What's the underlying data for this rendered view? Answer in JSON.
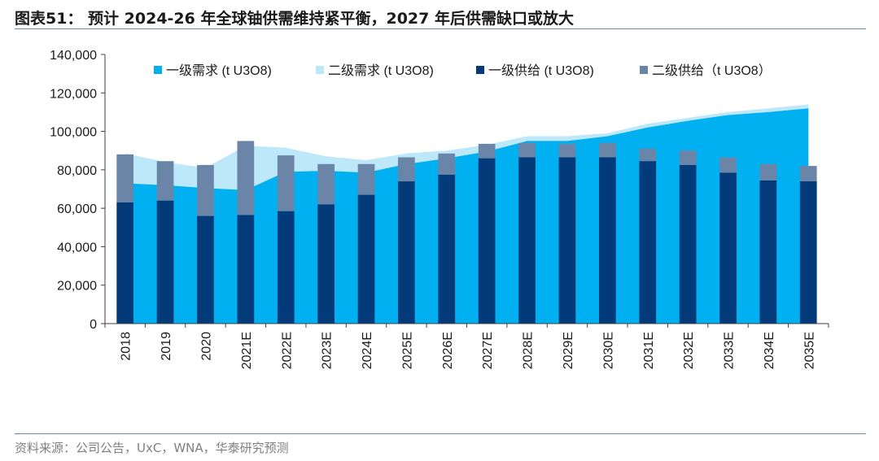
{
  "header": {
    "title": "图表51： 预计 2024-26 年全球铀供需维持紧平衡，2027 年后供需缺口或放大"
  },
  "footer": {
    "source": "资料来源：公司公告，UxC，WNA，华泰研究预测"
  },
  "colors": {
    "primary_demand": "#00b0f0",
    "secondary_demand": "#bde8f9",
    "primary_supply": "#023a7a",
    "secondary_supply": "#6b85a8",
    "axis": "#404040"
  },
  "chart_data": {
    "type": "bar",
    "title": "",
    "xlabel": "",
    "ylabel": "",
    "ylim": [
      0,
      140000
    ],
    "yticks": [
      0,
      20000,
      40000,
      60000,
      80000,
      100000,
      120000,
      140000
    ],
    "ytick_labels": [
      "0",
      "20,000",
      "40,000",
      "60,000",
      "80,000",
      "100,000",
      "120,000",
      "140,000"
    ],
    "grid": false,
    "legend_position": "top",
    "categories": [
      "2018",
      "2019",
      "2020",
      "2021E",
      "2022E",
      "2023E",
      "2024E",
      "2025E",
      "2026E",
      "2027E",
      "2028E",
      "2029E",
      "2030E",
      "2031E",
      "2032E",
      "2033E",
      "2034E",
      "2035E"
    ],
    "series": [
      {
        "name": "一级需求 (t U3O8)",
        "kind": "area",
        "values": [
          73000,
          72000,
          70500,
          69500,
          79000,
          79500,
          78500,
          83000,
          86000,
          89500,
          95000,
          95000,
          97500,
          102000,
          105500,
          108500,
          110000,
          112000
        ]
      },
      {
        "name": "二级需求 (t U3O8)",
        "kind": "area",
        "stacked_on": "一级需求 (t U3O8)",
        "values": [
          15500,
          12000,
          10500,
          23000,
          12500,
          7500,
          6500,
          5500,
          4000,
          3500,
          2500,
          2500,
          1500,
          2000,
          1500,
          1500,
          2000,
          2000
        ]
      },
      {
        "name": "一级供给 (t U3O8)",
        "kind": "bar",
        "values": [
          63000,
          64000,
          56000,
          56500,
          58500,
          62000,
          67000,
          74000,
          77500,
          86000,
          86500,
          86500,
          86500,
          84500,
          82500,
          78500,
          74500,
          74000
        ]
      },
      {
        "name": "二级供给（t U3O8）",
        "kind": "bar",
        "stacked_on": "一级供给 (t U3O8)",
        "values": [
          25000,
          20500,
          26500,
          38500,
          29000,
          21000,
          16000,
          12500,
          11000,
          7500,
          7500,
          7000,
          7500,
          6500,
          7500,
          8000,
          8500,
          8000
        ]
      }
    ]
  }
}
